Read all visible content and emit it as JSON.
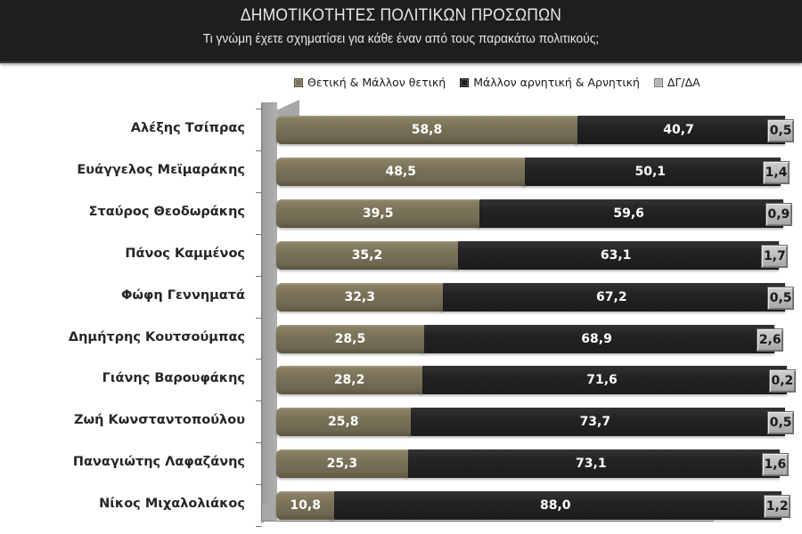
{
  "header": {
    "title": "ΔΗΜΟΤΙΚΟΤΗΤΕΣ ΠΟΛΙΤΙΚΩΝ ΠΡΟΣΩΠΩΝ",
    "subtitle": "Τι γνώμη έχετε σχηματίσει για κάθε έναν από τους παρακάτω πολιτικούς;"
  },
  "legend": [
    {
      "label": "Θετική & Μάλλον θετική",
      "color": "#7a7258"
    },
    {
      "label": "Μάλλον αρνητική & Αρνητική",
      "color": "#1e1e1e"
    },
    {
      "label": "ΔΓ/ΔΑ",
      "color": "#b4b4b4"
    }
  ],
  "rows": [
    {
      "name": "Αλέξης Τσίπρας",
      "pos": "58,8",
      "neg": "40,7",
      "dk": "0,5"
    },
    {
      "name": "Ευάγγελος Μεϊμαράκης",
      "pos": "48,5",
      "neg": "50,1",
      "dk": "1,4"
    },
    {
      "name": "Σταύρος Θεοδωράκης",
      "pos": "39,5",
      "neg": "59,6",
      "dk": "0,9"
    },
    {
      "name": "Πάνος Καμμένος",
      "pos": "35,2",
      "neg": "63,1",
      "dk": "1,7"
    },
    {
      "name": "Φώφη Γεννηματά",
      "pos": "32,3",
      "neg": "67,2",
      "dk": "0,5"
    },
    {
      "name": "Δημήτρης Κουτσούμπας",
      "pos": "28,5",
      "neg": "68,9",
      "dk": "2,6"
    },
    {
      "name": "Γιάνης Βαρουφάκης",
      "pos": "28,2",
      "neg": "71,6",
      "dk": "0,2"
    },
    {
      "name": "Ζωή Κωνσταντοπούλου",
      "pos": "25,8",
      "neg": "73,7",
      "dk": "0,5"
    },
    {
      "name": "Παναγιώτης Λαφαζάνης",
      "pos": "25,3",
      "neg": "73,1",
      "dk": "1,6"
    },
    {
      "name": "Νίκος Μιχαλολιάκος",
      "pos": "10,8",
      "neg": "88,0",
      "dk": "1,2"
    }
  ],
  "chart_data": {
    "type": "bar",
    "orientation": "horizontal",
    "stacked": true,
    "title": "ΔΗΜΟΤΙΚΟΤΗΤΕΣ ΠΟΛΙΤΙΚΩΝ ΠΡΟΣΩΠΩΝ",
    "subtitle": "Τι γνώμη έχετε σχηματίσει για κάθε έναν από τους παρακάτω πολιτικούς;",
    "xlabel": "",
    "ylabel": "",
    "xlim": [
      0,
      100
    ],
    "grid": false,
    "legend_position": "top",
    "categories": [
      "Αλέξης Τσίπρας",
      "Ευάγγελος Μεϊμαράκης",
      "Σταύρος Θεοδωράκης",
      "Πάνος Καμμένος",
      "Φώφη Γεννηματά",
      "Δημήτρης Κουτσούμπας",
      "Γιάνης Βαρουφάκης",
      "Ζωή Κωνσταντοπούλου",
      "Παναγιώτης Λαφαζάνης",
      "Νίκος Μιχαλολιάκος"
    ],
    "series": [
      {
        "name": "Θετική & Μάλλον θετική",
        "color": "#7a7258",
        "values": [
          58.8,
          48.5,
          39.5,
          35.2,
          32.3,
          28.5,
          28.2,
          25.8,
          25.3,
          10.8
        ]
      },
      {
        "name": "Μάλλον αρνητική & Αρνητική",
        "color": "#1e1e1e",
        "values": [
          40.7,
          50.1,
          59.6,
          63.1,
          67.2,
          68.9,
          71.6,
          73.7,
          73.1,
          88.0
        ]
      },
      {
        "name": "ΔΓ/ΔΑ",
        "color": "#b4b4b4",
        "values": [
          0.5,
          1.4,
          0.9,
          1.7,
          0.5,
          2.6,
          0.2,
          0.5,
          1.6,
          1.2
        ]
      }
    ]
  }
}
